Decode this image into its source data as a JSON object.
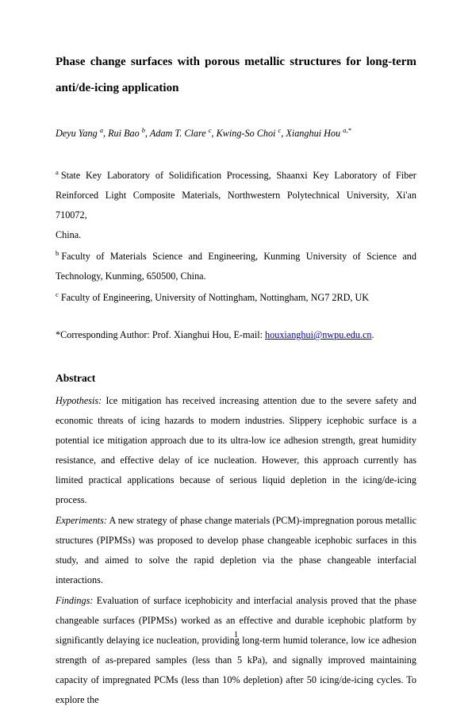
{
  "title_words": [
    "Phase",
    "change",
    "surfaces",
    "with",
    "porous",
    "metallic",
    "structures",
    "for",
    "long-term"
  ],
  "title_line2": "anti/de-icing application",
  "authors_html": "Deyu Yang <sup>a</sup>, Rui Bao <sup>b</sup>, Adam T. Clare <sup>c</sup>, Kwing-So Choi <sup>c</sup>, Xianghui Hou <sup>a,*</sup>",
  "affil_a_sup": "a",
  "affil_a_l1": [
    "State",
    "Key",
    "Laboratory",
    "of",
    "Solidification",
    "Processing,",
    "Shaanxi",
    "Key",
    "Laboratory",
    "of",
    "Fiber"
  ],
  "affil_a_l2": "Reinforced Light Composite Materials, Northwestern Polytechnical University, Xi'an 710072,",
  "affil_a_l3": "China.",
  "affil_b_sup": "b",
  "affil_b_l1": [
    "Faculty",
    "of",
    "Materials",
    "Science",
    "and",
    "Engineering,",
    "Kunming",
    "University",
    "of",
    "Science",
    "and"
  ],
  "affil_b_l2": "Technology, Kunming, 650500, China.",
  "affil_c_sup": "c",
  "affil_c_text": "Faculty of Engineering, University of Nottingham, Nottingham, NG7 2RD, UK",
  "corresp_prefix": "*Corresponding Author: Prof. Xianghui Hou, E-mail: ",
  "corresp_email": "houxianghui@nwpu.edu.cn",
  "corresp_suffix": ".",
  "abstract_heading": "Abstract",
  "hypothesis_label": "Hypothesis:",
  "hypothesis_l1": [
    "Ice",
    "mitigation",
    "has",
    "received",
    "increasing",
    "attention",
    "due",
    "to",
    "the",
    "severe",
    "safety",
    "and"
  ],
  "hypothesis_rest": "economic threats of icing hazards to modern industries. Slippery icephobic surface is a potential ice mitigation approach due to its ultra-low ice adhesion strength, great humidity resistance, and effective delay of ice nucleation. However, this approach currently has limited practical applications because of serious liquid depletion in the icing/de-icing process.",
  "experiments_label": "Experiments:",
  "experiments_text": "A new strategy of phase change materials (PCM)-impregnation porous metallic structures (PIPMSs) was proposed to develop phase changeable icephobic surfaces in this study, and aimed to solve the rapid depletion via the phase changeable interfacial interactions.",
  "findings_label": "Findings:",
  "findings_text": "Evaluation of surface icephobicity and interfacial analysis proved that the phase changeable surfaces (PIPMSs) worked as an effective and durable icephobic platform by significantly delaying ice nucleation, providing long-term humid tolerance, low ice adhesion strength of as-prepared samples (less than 5 kPa), and signally improved maintaining capacity of impregnated PCMs (less than 10% depletion) after 50 icing/de-icing cycles. To explore the",
  "page_number": "1"
}
